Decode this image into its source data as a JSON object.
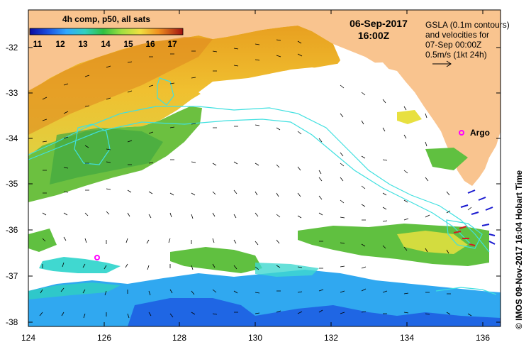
{
  "legend": {
    "title": "4h comp, p50, all sats",
    "ticks": [
      "11",
      "12",
      "13",
      "14",
      "15",
      "16",
      "17"
    ]
  },
  "header": {
    "date": "06-Sep-2017",
    "time": "16:00Z"
  },
  "info": {
    "line1": "GSLA (0.1m contours)",
    "line2": "and velocities for",
    "line3": "07-Sep 00:00Z",
    "line4": "0.5m/s (1kt 24h)"
  },
  "argo_label": "Argo",
  "credit": "© IMOS 09-Nov-2017 16:04 Hobart Time",
  "y_axis": {
    "ticks": [
      "-32",
      "-33",
      "-34",
      "-35",
      "-36",
      "-37",
      "-38"
    ]
  },
  "x_axis": {
    "ticks": [
      "124",
      "126",
      "128",
      "130",
      "132",
      "134",
      "136"
    ]
  },
  "colors": {
    "land": "#f9c48f",
    "cloud": "#ffffff",
    "contour": "#40e0e0",
    "argo": "#ff00ff"
  }
}
